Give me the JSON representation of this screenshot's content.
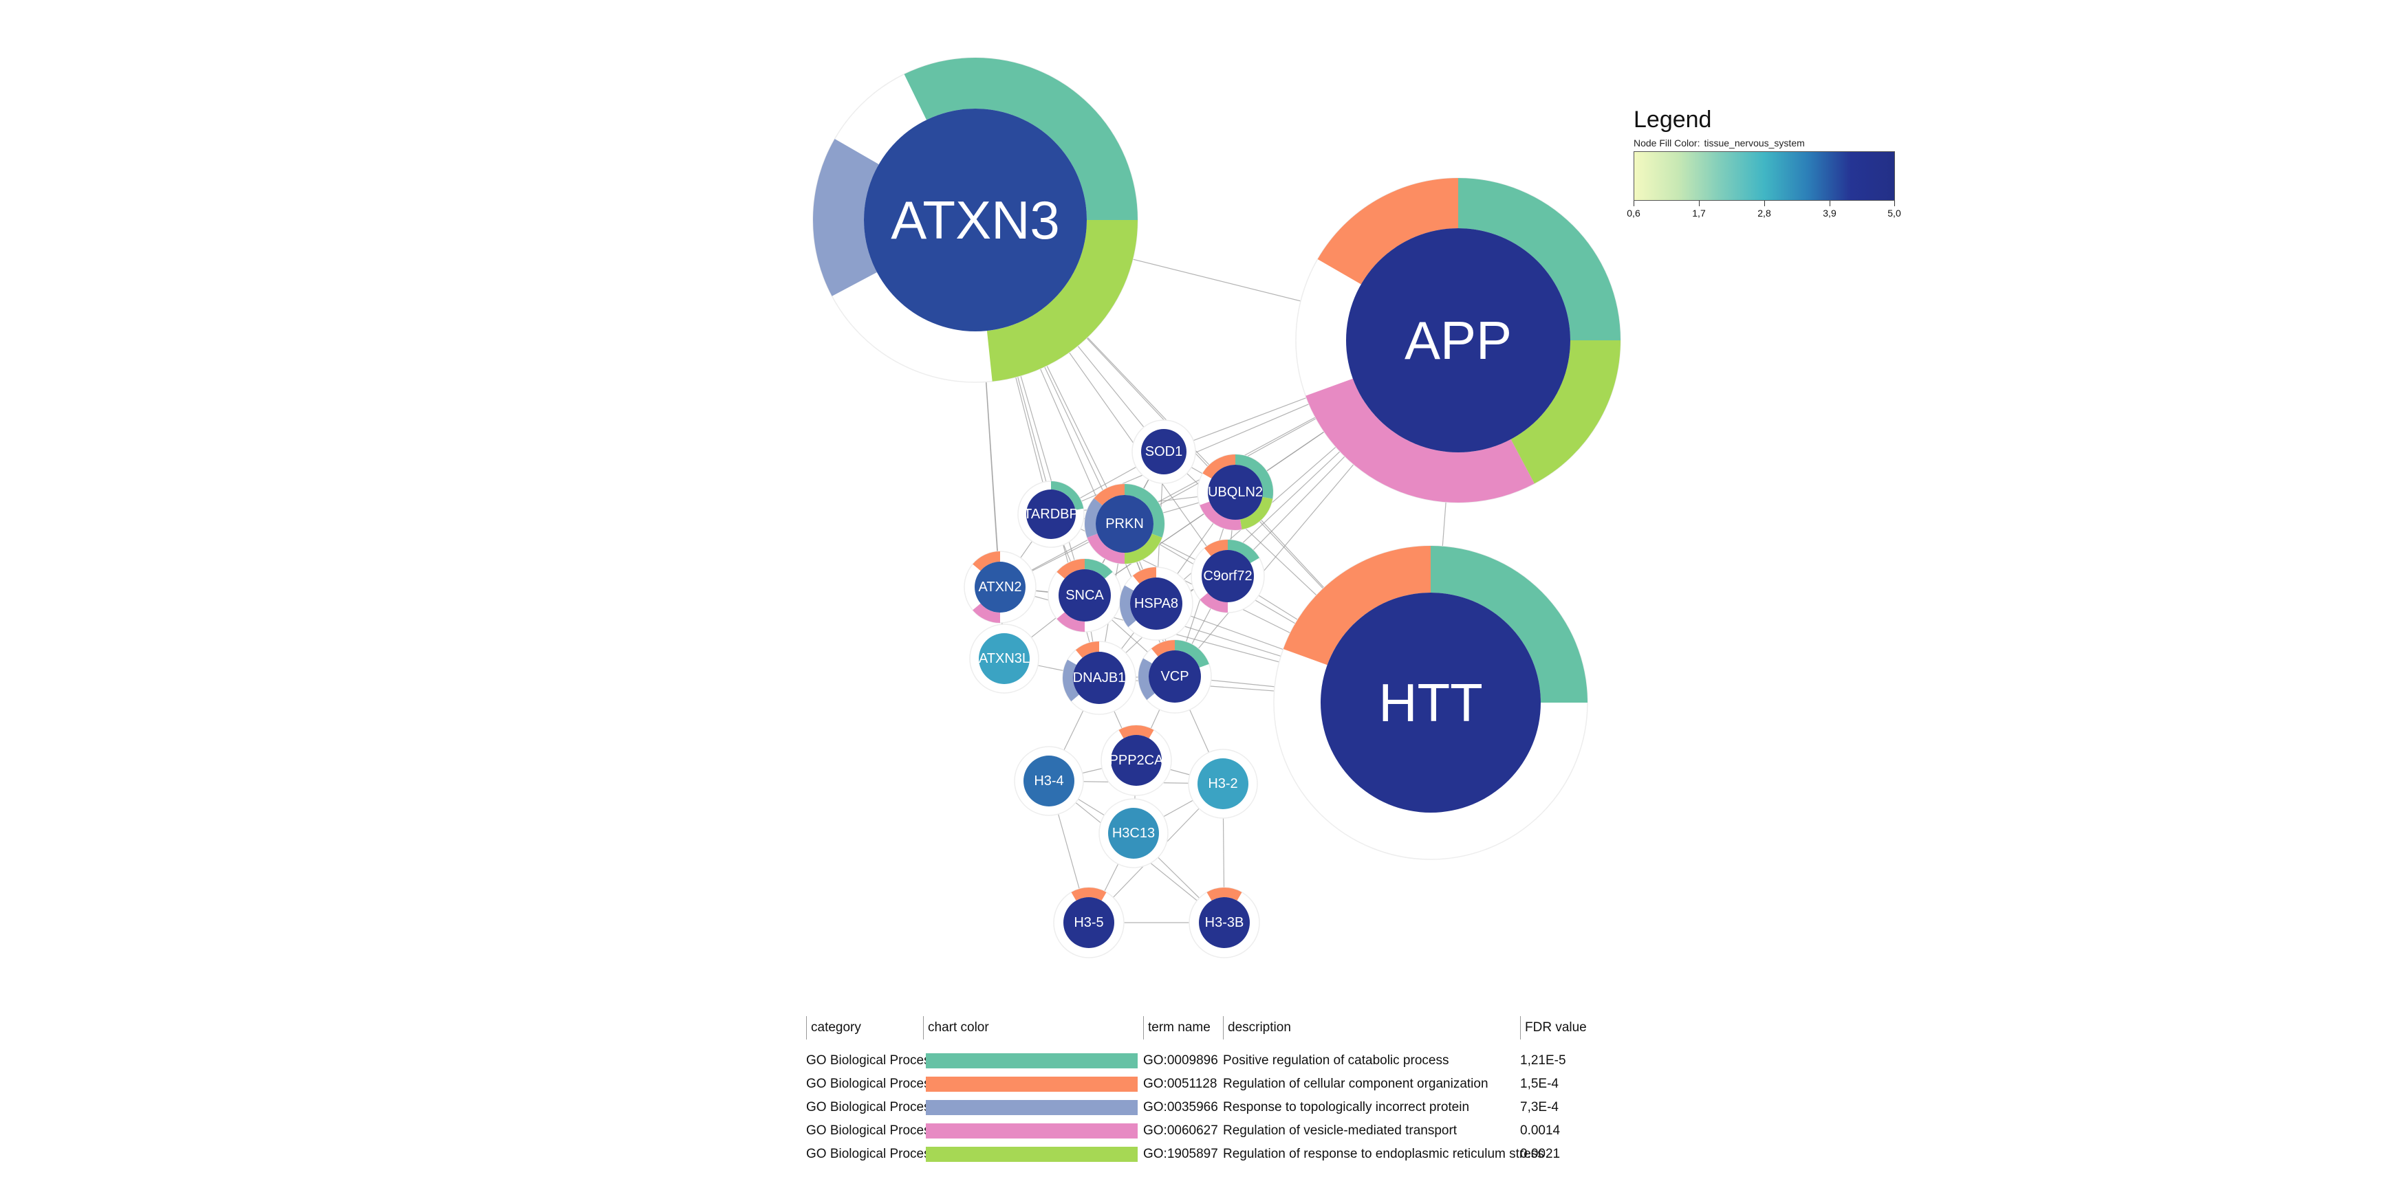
{
  "legend": {
    "title": "Legend",
    "subtitle_label": "Node Fill Color:",
    "subtitle_value": "tissue_nervous_system",
    "ticks": [
      "0,6",
      "1,7",
      "2,8",
      "3,9",
      "5,0"
    ]
  },
  "nodes": [
    {
      "id": "ATXN3",
      "label": "ATXN3",
      "fill": "#2a4a9c"
    },
    {
      "id": "APP",
      "label": "APP",
      "fill": "#25338f"
    },
    {
      "id": "HTT",
      "label": "HTT",
      "fill": "#25338f"
    },
    {
      "id": "SOD1",
      "label": "SOD1",
      "fill": "#25338f"
    },
    {
      "id": "TARDBP",
      "label": "TARDBP",
      "fill": "#25338f"
    },
    {
      "id": "PRKN",
      "label": "PRKN",
      "fill": "#2a4a9c"
    },
    {
      "id": "UBQLN2",
      "label": "UBQLN2",
      "fill": "#25338f"
    },
    {
      "id": "ATXN2",
      "label": "ATXN2",
      "fill": "#2b5aa6"
    },
    {
      "id": "SNCA",
      "label": "SNCA",
      "fill": "#25338f"
    },
    {
      "id": "HSPA8",
      "label": "HSPA8",
      "fill": "#25338f"
    },
    {
      "id": "C9orf72",
      "label": "C9orf72",
      "fill": "#25338f"
    },
    {
      "id": "ATXN3L",
      "label": "ATXN3L",
      "fill": "#3ba3c3"
    },
    {
      "id": "DNAJB1",
      "label": "DNAJB1",
      "fill": "#25338f"
    },
    {
      "id": "VCP",
      "label": "VCP",
      "fill": "#25338f"
    },
    {
      "id": "PPP2CA",
      "label": "PPP2CA",
      "fill": "#25338f"
    },
    {
      "id": "H3-4",
      "label": "H3-4",
      "fill": "#2e6fb0"
    },
    {
      "id": "H3-2",
      "label": "H3-2",
      "fill": "#3ba3c3"
    },
    {
      "id": "H3C13",
      "label": "H3C13",
      "fill": "#3592bc"
    },
    {
      "id": "H3-5",
      "label": "H3-5",
      "fill": "#25338f"
    },
    {
      "id": "H3-3B",
      "label": "H3-3B",
      "fill": "#25338f"
    }
  ],
  "edges": [
    [
      "ATXN3",
      "APP"
    ],
    [
      "ATXN3",
      "TARDBP"
    ],
    [
      "ATXN3",
      "SOD1"
    ],
    [
      "ATXN3",
      "PRKN"
    ],
    [
      "ATXN3",
      "UBQLN2"
    ],
    [
      "ATXN3",
      "HSPA8"
    ],
    [
      "ATXN3",
      "VCP"
    ],
    [
      "ATXN3",
      "SNCA"
    ],
    [
      "ATXN3",
      "ATXN2"
    ],
    [
      "ATXN3",
      "ATXN3L"
    ],
    [
      "ATXN3",
      "DNAJB1"
    ],
    [
      "ATXN3",
      "C9orf72"
    ],
    [
      "ATXN3",
      "HTT"
    ],
    [
      "APP",
      "HTT"
    ],
    [
      "APP",
      "SOD1"
    ],
    [
      "APP",
      "UBQLN2"
    ],
    [
      "APP",
      "PRKN"
    ],
    [
      "APP",
      "C9orf72"
    ],
    [
      "APP",
      "HSPA8"
    ],
    [
      "APP",
      "SNCA"
    ],
    [
      "APP",
      "VCP"
    ],
    [
      "APP",
      "TARDBP"
    ],
    [
      "APP",
      "ATXN2"
    ],
    [
      "APP",
      "DNAJB1"
    ],
    [
      "HTT",
      "VCP"
    ],
    [
      "HTT",
      "C9orf72"
    ],
    [
      "HTT",
      "HSPA8"
    ],
    [
      "HTT",
      "UBQLN2"
    ],
    [
      "HTT",
      "PRKN"
    ],
    [
      "HTT",
      "SNCA"
    ],
    [
      "HTT",
      "DNAJB1"
    ],
    [
      "HTT",
      "SOD1"
    ],
    [
      "HTT",
      "ATXN2"
    ],
    [
      "HTT",
      "TARDBP"
    ],
    [
      "SOD1",
      "PRKN"
    ],
    [
      "SOD1",
      "UBQLN2"
    ],
    [
      "SOD1",
      "SNCA"
    ],
    [
      "SOD1",
      "HSPA8"
    ],
    [
      "SOD1",
      "TARDBP"
    ],
    [
      "TARDBP",
      "PRKN"
    ],
    [
      "TARDBP",
      "SNCA"
    ],
    [
      "TARDBP",
      "ATXN2"
    ],
    [
      "TARDBP",
      "UBQLN2"
    ],
    [
      "PRKN",
      "UBQLN2"
    ],
    [
      "PRKN",
      "SNCA"
    ],
    [
      "PRKN",
      "HSPA8"
    ],
    [
      "PRKN",
      "VCP"
    ],
    [
      "PRKN",
      "C9orf72"
    ],
    [
      "PRKN",
      "DNAJB1"
    ],
    [
      "PRKN",
      "ATXN2"
    ],
    [
      "UBQLN2",
      "HSPA8"
    ],
    [
      "UBQLN2",
      "C9orf72"
    ],
    [
      "UBQLN2",
      "VCP"
    ],
    [
      "UBQLN2",
      "SNCA"
    ],
    [
      "ATXN2",
      "SNCA"
    ],
    [
      "ATXN2",
      "ATXN3L"
    ],
    [
      "ATXN2",
      "HSPA8"
    ],
    [
      "SNCA",
      "HSPA8"
    ],
    [
      "SNCA",
      "DNAJB1"
    ],
    [
      "SNCA",
      "VCP"
    ],
    [
      "HSPA8",
      "C9orf72"
    ],
    [
      "HSPA8",
      "DNAJB1"
    ],
    [
      "HSPA8",
      "VCP"
    ],
    [
      "C9orf72",
      "VCP"
    ],
    [
      "DNAJB1",
      "VCP"
    ],
    [
      "ATXN3L",
      "DNAJB1"
    ],
    [
      "ATXN3L",
      "SNCA"
    ],
    [
      "VCP",
      "PPP2CA"
    ],
    [
      "DNAJB1",
      "PPP2CA"
    ],
    [
      "VCP",
      "H3-2"
    ],
    [
      "DNAJB1",
      "H3-4"
    ],
    [
      "PPP2CA",
      "H3-4"
    ],
    [
      "PPP2CA",
      "H3-2"
    ],
    [
      "PPP2CA",
      "H3C13"
    ],
    [
      "H3-4",
      "H3-2"
    ],
    [
      "H3-4",
      "H3C13"
    ],
    [
      "H3-4",
      "H3-5"
    ],
    [
      "H3-4",
      "H3-3B"
    ],
    [
      "H3-2",
      "H3C13"
    ],
    [
      "H3-2",
      "H3-5"
    ],
    [
      "H3-2",
      "H3-3B"
    ],
    [
      "H3C13",
      "H3-5"
    ],
    [
      "H3C13",
      "H3-3B"
    ],
    [
      "H3-5",
      "H3-3B"
    ]
  ],
  "colors": {
    "catabolic": "#66c2a5",
    "organization": "#fc8d62",
    "incorrect_protein": "#8da0cb",
    "vesicle": "#e78ac3",
    "er_stress": "#a6d854"
  },
  "table": {
    "headers": {
      "category": "category",
      "chart_color": "chart color",
      "term_name": "term name",
      "description": "description",
      "fdr": "FDR value"
    },
    "rows": [
      {
        "category": "GO Biological Process",
        "color": "#66c2a5",
        "term": "GO:0009896",
        "description": "Positive regulation of catabolic process",
        "fdr": "1,21E-5"
      },
      {
        "category": "GO Biological Process",
        "color": "#fc8d62",
        "term": "GO:0051128",
        "description": "Regulation of cellular component organization",
        "fdr": "1,5E-4"
      },
      {
        "category": "GO Biological Process",
        "color": "#8da0cb",
        "term": "GO:0035966",
        "description": "Response to topologically incorrect protein",
        "fdr": "7,3E-4"
      },
      {
        "category": "GO Biological Process",
        "color": "#e78ac3",
        "term": "GO:0060627",
        "description": "Regulation of vesicle-mediated transport",
        "fdr": "0.0014"
      },
      {
        "category": "GO Biological Process",
        "color": "#a6d854",
        "term": "GO:1905897",
        "description": "Regulation of response to endoplasmic reticulum stress",
        "fdr": "0.0021"
      }
    ]
  }
}
